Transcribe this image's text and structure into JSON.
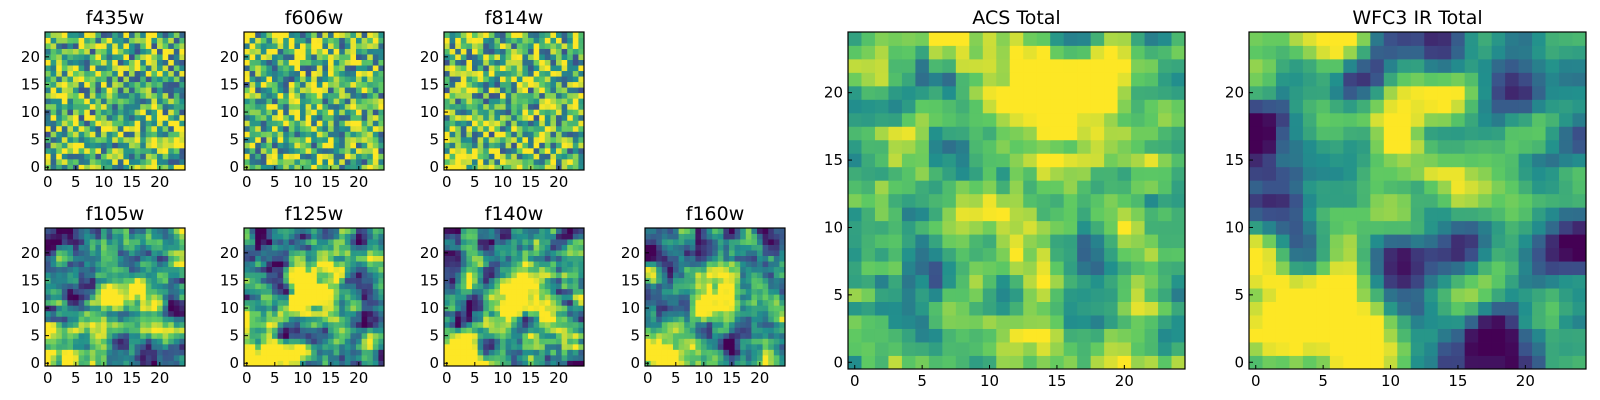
{
  "chart_data": [
    {
      "type": "heatmap",
      "title": "f435w",
      "x_ticks": [
        0,
        5,
        10,
        15,
        20
      ],
      "y_ticks": [
        0,
        5,
        10,
        15,
        20
      ],
      "grid_size": 25,
      "xlim": [
        -0.5,
        24.5
      ],
      "ylim": [
        -0.5,
        24.5
      ],
      "pattern": "noise",
      "bright_spots": []
    },
    {
      "type": "heatmap",
      "title": "f606w",
      "x_ticks": [
        0,
        5,
        10,
        15,
        20
      ],
      "y_ticks": [
        0,
        5,
        10,
        15,
        20
      ],
      "grid_size": 25,
      "xlim": [
        -0.5,
        24.5
      ],
      "ylim": [
        -0.5,
        24.5
      ],
      "pattern": "noise",
      "bright_spots": []
    },
    {
      "type": "heatmap",
      "title": "f814w",
      "x_ticks": [
        0,
        5,
        10,
        15,
        20
      ],
      "y_ticks": [
        0,
        5,
        10,
        15,
        20
      ],
      "grid_size": 25,
      "xlim": [
        -0.5,
        24.5
      ],
      "ylim": [
        -0.5,
        24.5
      ],
      "pattern": "noise",
      "bright_spots": [
        [
          2,
          1
        ]
      ]
    },
    {
      "type": "heatmap",
      "title": "f105w",
      "x_ticks": [
        0,
        5,
        10,
        15,
        20
      ],
      "y_ticks": [
        0,
        5,
        10,
        15,
        20
      ],
      "grid_size": 25,
      "xlim": [
        -0.5,
        24.5
      ],
      "ylim": [
        -0.5,
        24.5
      ],
      "pattern": "smooth",
      "bright_spots": [
        [
          12,
          12
        ],
        [
          2,
          1
        ]
      ]
    },
    {
      "type": "heatmap",
      "title": "f125w",
      "x_ticks": [
        0,
        5,
        10,
        15,
        20
      ],
      "y_ticks": [
        0,
        5,
        10,
        15,
        20
      ],
      "grid_size": 25,
      "xlim": [
        -0.5,
        24.5
      ],
      "ylim": [
        -0.5,
        24.5
      ],
      "pattern": "smooth",
      "bright_spots": [
        [
          12,
          13
        ],
        [
          2,
          1
        ]
      ]
    },
    {
      "type": "heatmap",
      "title": "f140w",
      "x_ticks": [
        0,
        5,
        10,
        15,
        20
      ],
      "y_ticks": [
        0,
        5,
        10,
        15,
        20
      ],
      "grid_size": 25,
      "xlim": [
        -0.5,
        24.5
      ],
      "ylim": [
        -0.5,
        24.5
      ],
      "pattern": "smooth",
      "bright_spots": [
        [
          12,
          12
        ],
        [
          2,
          1
        ]
      ]
    },
    {
      "type": "heatmap",
      "title": "f160w",
      "x_ticks": [
        0,
        5,
        10,
        15,
        20
      ],
      "y_ticks": [
        0,
        5,
        10,
        15,
        20
      ],
      "grid_size": 25,
      "xlim": [
        -0.5,
        24.5
      ],
      "ylim": [
        -0.5,
        24.5
      ],
      "pattern": "smooth",
      "bright_spots": [
        [
          12,
          12
        ],
        [
          2,
          1
        ]
      ]
    },
    {
      "type": "heatmap",
      "title": "ACS Total",
      "x_ticks": [
        0,
        5,
        10,
        15,
        20
      ],
      "y_ticks": [
        0,
        5,
        10,
        15,
        20
      ],
      "grid_size": 25,
      "xlim": [
        -0.5,
        24.5
      ],
      "ylim": [
        -0.5,
        24.5
      ],
      "pattern": "blocky",
      "bright_spots": [
        [
          16,
          19
        ]
      ]
    },
    {
      "type": "heatmap",
      "title": "WFC3 IR Total",
      "x_ticks": [
        0,
        5,
        10,
        15,
        20
      ],
      "y_ticks": [
        0,
        5,
        10,
        15,
        20
      ],
      "grid_size": 25,
      "xlim": [
        -0.5,
        24.5
      ],
      "ylim": [
        -0.5,
        24.5
      ],
      "pattern": "smooth-strong",
      "bright_spots": [
        [
          12,
          13
        ],
        [
          3,
          2
        ]
      ]
    }
  ],
  "colormap": [
    "#440154",
    "#3b528b",
    "#21908d",
    "#5dc963",
    "#fde725"
  ]
}
